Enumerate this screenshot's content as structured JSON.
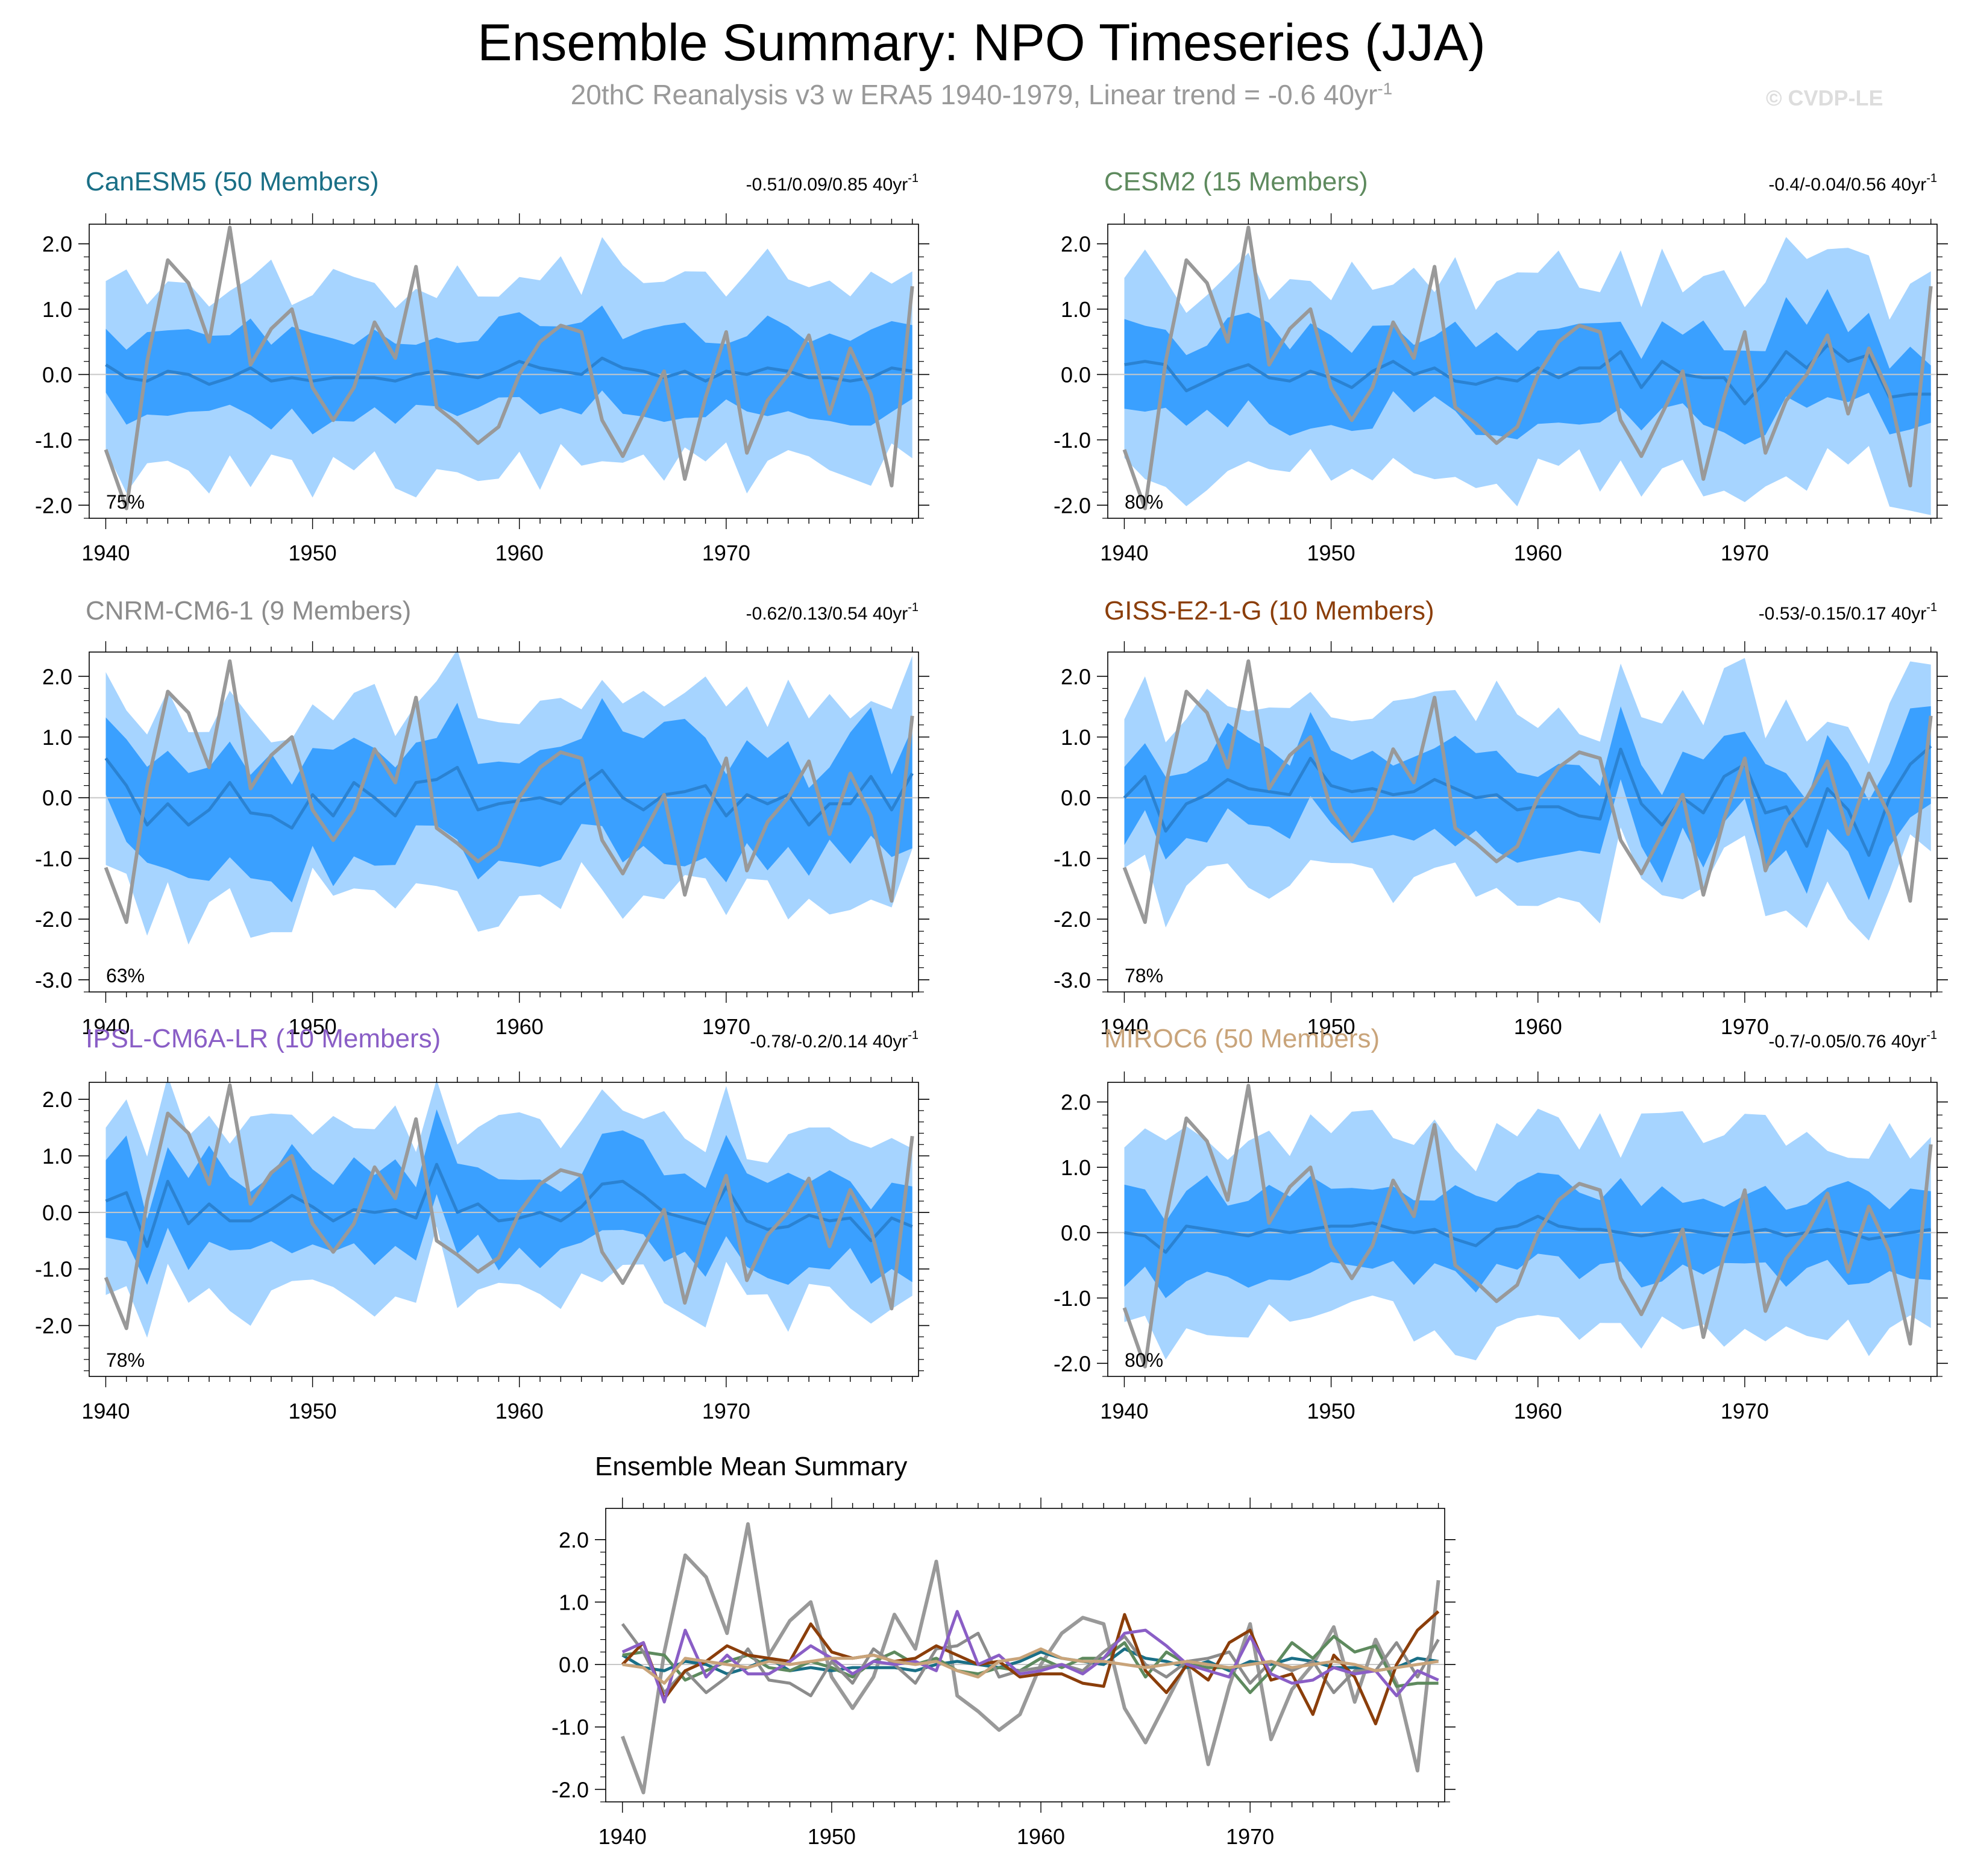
{
  "title": "Ensemble Summary: NPO Timeseries (JJA)",
  "subtitle": {
    "prefix": "20thC Reanalysis v3 w ERA5 1940-1979, Linear trend = -0.6 40yr",
    "sup": "-1"
  },
  "credit": "© CVDP-LE",
  "colors": {
    "outer_band": "#a6d4ff",
    "inner_band": "#3aa0ff",
    "ens_mean": "#2a82d2",
    "observation": "#999999",
    "zero_line": "#c8c8c8"
  },
  "chart_data": {
    "type": "line",
    "x": [
      1940,
      1941,
      1942,
      1943,
      1944,
      1945,
      1946,
      1947,
      1948,
      1949,
      1950,
      1951,
      1952,
      1953,
      1954,
      1955,
      1956,
      1957,
      1958,
      1959,
      1960,
      1961,
      1962,
      1963,
      1964,
      1965,
      1966,
      1967,
      1968,
      1969,
      1970,
      1971,
      1972,
      1973,
      1974,
      1975,
      1976,
      1977,
      1978,
      1979
    ],
    "xticks": [
      "1940",
      "1950",
      "1960",
      "1970"
    ],
    "observation": [
      -1.15,
      -2.05,
      0.2,
      1.75,
      1.4,
      0.5,
      2.25,
      0.15,
      0.7,
      1.0,
      -0.2,
      -0.7,
      -0.2,
      0.8,
      0.25,
      1.65,
      -0.5,
      -0.75,
      -1.05,
      -0.8,
      0.0,
      0.5,
      0.75,
      0.65,
      -0.7,
      -1.25,
      -0.6,
      0.05,
      -1.6,
      -0.35,
      0.65,
      -1.2,
      -0.4,
      0.0,
      0.6,
      -0.6,
      0.4,
      -0.3,
      -1.7,
      1.35
    ],
    "panels": [
      {
        "name": "CanESM5 (50 Members)",
        "color": "#1a6f86",
        "trend": "-0.51/0.09/0.85 40yr",
        "trend_sup": "-1",
        "pct": "75%",
        "ylim": [
          -2.2,
          2.3
        ],
        "yticks": [
          "2.0",
          "1.0",
          "0.0",
          "-1.0",
          "-2.0"
        ],
        "ytick_values": [
          2,
          1,
          0,
          -1,
          -2
        ],
        "mean": [
          0.15,
          -0.05,
          -0.1,
          0.05,
          0.0,
          -0.15,
          -0.05,
          0.1,
          -0.1,
          -0.05,
          -0.1,
          -0.05,
          -0.05,
          -0.05,
          -0.1,
          0.0,
          0.05,
          0.0,
          -0.05,
          0.05,
          0.2,
          0.1,
          0.05,
          0.0,
          0.25,
          0.1,
          0.05,
          -0.05,
          0.05,
          -0.1,
          0.05,
          0.0,
          0.1,
          0.05,
          -0.05,
          -0.05,
          -0.1,
          -0.05,
          0.1,
          0.05
        ],
        "band_amp_inner": 0.65,
        "band_amp_outer": 1.45,
        "band_seed": 11
      },
      {
        "name": "CESM2 (15 Members)",
        "color": "#5e8a5e",
        "trend": "-0.4/-0.04/0.56 40yr",
        "trend_sup": "-1",
        "pct": "80%",
        "ylim": [
          -2.2,
          2.3
        ],
        "yticks": [
          "2.0",
          "1.0",
          "0.0",
          "-1.0",
          "-2.0"
        ],
        "ytick_values": [
          2,
          1,
          0,
          -1,
          -2
        ],
        "mean": [
          0.15,
          0.2,
          0.15,
          -0.25,
          -0.1,
          0.05,
          0.15,
          -0.05,
          -0.1,
          0.05,
          -0.05,
          -0.2,
          0.05,
          0.2,
          0.0,
          0.1,
          -0.1,
          -0.15,
          -0.05,
          -0.1,
          0.1,
          -0.05,
          0.1,
          0.1,
          0.35,
          -0.2,
          0.2,
          0.0,
          -0.05,
          -0.05,
          -0.45,
          -0.1,
          0.35,
          0.1,
          0.45,
          0.2,
          0.3,
          -0.35,
          -0.3,
          -0.3
        ],
        "band_amp_inner": 0.7,
        "band_amp_outer": 1.5,
        "band_seed": 23
      },
      {
        "name": "CNRM-CM6-1 (9 Members)",
        "color": "#8c8c8c",
        "trend": "-0.62/0.13/0.54 40yr",
        "trend_sup": "-1",
        "pct": "63%",
        "ylim": [
          -3.2,
          2.4
        ],
        "yticks": [
          "2.0",
          "1.0",
          "0.0",
          "-1.0",
          "-2.0",
          "-3.0"
        ],
        "ytick_values": [
          2,
          1,
          0,
          -1,
          -2,
          -3
        ],
        "mean": [
          0.65,
          0.2,
          -0.45,
          -0.1,
          -0.45,
          -0.2,
          0.25,
          -0.25,
          -0.3,
          -0.5,
          0.05,
          -0.3,
          0.25,
          0.0,
          -0.3,
          0.25,
          0.3,
          0.5,
          -0.2,
          -0.1,
          -0.05,
          0.0,
          -0.1,
          0.2,
          0.45,
          0.0,
          -0.2,
          0.05,
          0.1,
          0.2,
          -0.3,
          0.05,
          -0.1,
          0.05,
          -0.45,
          -0.1,
          -0.1,
          0.35,
          -0.2,
          0.4
        ],
        "band_amp_inner": 0.95,
        "band_amp_outer": 1.6,
        "band_seed": 37
      },
      {
        "name": "GISS-E2-1-G (10 Members)",
        "color": "#8b3e0a",
        "trend": "-0.53/-0.15/0.17 40yr",
        "trend_sup": "-1",
        "pct": "78%",
        "ylim": [
          -3.2,
          2.4
        ],
        "yticks": [
          "2.0",
          "1.0",
          "0.0",
          "-1.0",
          "-2.0",
          "-3.0"
        ],
        "ytick_values": [
          2,
          1,
          0,
          -1,
          -2,
          -3
        ],
        "mean": [
          0.0,
          0.35,
          -0.55,
          -0.1,
          0.05,
          0.3,
          0.15,
          0.1,
          0.05,
          0.65,
          0.2,
          0.1,
          0.15,
          0.05,
          0.1,
          0.3,
          0.15,
          0.0,
          0.05,
          -0.2,
          -0.15,
          -0.15,
          -0.3,
          -0.35,
          0.8,
          -0.1,
          -0.45,
          0.0,
          -0.25,
          0.35,
          0.55,
          -0.25,
          -0.15,
          -0.8,
          0.15,
          -0.2,
          -0.95,
          0.0,
          0.55,
          0.85
        ],
        "band_amp_inner": 0.75,
        "band_amp_outer": 1.45,
        "band_seed": 53
      },
      {
        "name": "IPSL-CM6A-LR (10 Members)",
        "color": "#8a5ec6",
        "trend": "-0.78/-0.2/0.14 40yr",
        "trend_sup": "-1",
        "pct": "78%",
        "ylim": [
          -2.9,
          2.3
        ],
        "yticks": [
          "2.0",
          "1.0",
          "0.0",
          "-1.0",
          "-2.0"
        ],
        "ytick_values": [
          2,
          1,
          0,
          -1,
          -2
        ],
        "mean": [
          0.2,
          0.35,
          -0.6,
          0.55,
          -0.2,
          0.15,
          -0.15,
          -0.15,
          0.05,
          0.3,
          0.1,
          -0.15,
          0.05,
          0.0,
          0.05,
          -0.1,
          0.85,
          0.0,
          0.15,
          -0.15,
          -0.1,
          0.0,
          -0.15,
          0.1,
          0.5,
          0.55,
          0.3,
          0.0,
          -0.1,
          -0.2,
          0.45,
          -0.15,
          -0.3,
          -0.25,
          -0.05,
          -0.15,
          -0.1,
          -0.5,
          -0.1,
          -0.25
        ],
        "band_amp_inner": 0.8,
        "band_amp_outer": 1.45,
        "band_seed": 71
      },
      {
        "name": "MIROC6 (50 Members)",
        "color": "#c9a47a",
        "trend": "-0.7/-0.05/0.76 40yr",
        "trend_sup": "-1",
        "pct": "80%",
        "ylim": [
          -2.2,
          2.3
        ],
        "yticks": [
          "2.0",
          "1.0",
          "0.0",
          "-1.0",
          "-2.0"
        ],
        "ytick_values": [
          2,
          1,
          0,
          -1,
          -2
        ],
        "mean": [
          0.0,
          -0.05,
          -0.3,
          0.1,
          0.05,
          0.0,
          -0.05,
          0.05,
          0.0,
          0.05,
          0.1,
          0.1,
          0.15,
          0.05,
          0.0,
          0.05,
          -0.1,
          -0.2,
          0.05,
          0.1,
          0.25,
          0.1,
          0.05,
          0.05,
          0.0,
          -0.05,
          0.0,
          0.05,
          0.0,
          -0.05,
          0.0,
          0.05,
          -0.05,
          0.0,
          0.05,
          0.0,
          -0.1,
          -0.05,
          0.0,
          0.05
        ],
        "band_amp_inner": 0.65,
        "band_amp_outer": 1.45,
        "band_seed": 89
      }
    ],
    "summary": {
      "title": "Ensemble Mean Summary",
      "ylim": [
        -2.2,
        2.5
      ],
      "yticks": [
        "2.0",
        "1.0",
        "0.0",
        "-1.0",
        "-2.0"
      ],
      "ytick_values": [
        2,
        1,
        0,
        -1,
        -2
      ]
    }
  }
}
